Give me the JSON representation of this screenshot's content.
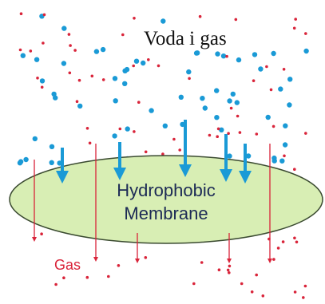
{
  "title": "Voda i gas",
  "membrane": {
    "label_lines": [
      "Hydrophobic",
      "Membrane"
    ]
  },
  "gas_label": "Gas"
}
